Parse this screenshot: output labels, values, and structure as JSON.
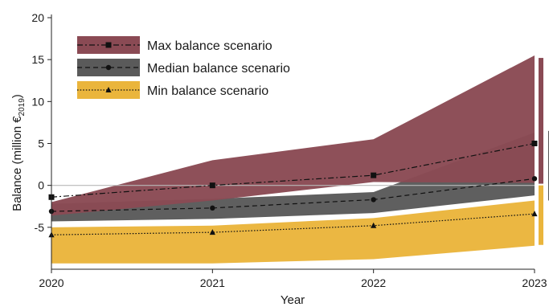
{
  "chart_data": {
    "type": "area",
    "xlabel": "Year",
    "ylabel_main": "Balance (million €",
    "ylabel_sub": "2019",
    "ylabel_close": ")",
    "x": [
      2020,
      2021,
      2022,
      2023
    ],
    "xticks": [
      "2020",
      "2021",
      "2022",
      "2023"
    ],
    "yticks": [
      20,
      15,
      10,
      5,
      0,
      -5
    ],
    "ylim": [
      -10,
      20
    ],
    "xlim": [
      2020,
      2023
    ],
    "zero_line": true,
    "legend_position": "top-left",
    "series": [
      {
        "name": "Max balance scenario",
        "marker": "square",
        "line_style": "dash-dot",
        "color": "#8a4a54",
        "center": [
          -1.4,
          0.0,
          1.2,
          5.0
        ],
        "upper": [
          -2.0,
          3.0,
          5.5,
          15.5
        ],
        "lower": [
          -3.6,
          -1.8,
          0.4,
          0.3
        ],
        "end_range": [
          0.2,
          15.2
        ]
      },
      {
        "name": "Median balance scenario",
        "marker": "circle",
        "line_style": "dashed",
        "color": "#5a5a5a",
        "center": [
          -3.1,
          -2.7,
          -1.7,
          0.8
        ],
        "upper": [
          -2.2,
          -1.6,
          -0.8,
          6.3
        ],
        "lower": [
          -4.3,
          -4.0,
          -3.3,
          -1.2
        ],
        "end_range": [
          -1.8,
          6.5
        ]
      },
      {
        "name": "Min balance scenario",
        "marker": "triangle",
        "line_style": "dotted",
        "color": "#eab53c",
        "center": [
          -5.9,
          -5.6,
          -4.8,
          -3.4
        ],
        "upper": [
          -5.0,
          -4.8,
          -3.9,
          -1.8
        ],
        "lower": [
          -9.3,
          -9.3,
          -8.8,
          -7.2
        ],
        "end_range": [
          -7.1,
          0.0
        ]
      }
    ]
  }
}
